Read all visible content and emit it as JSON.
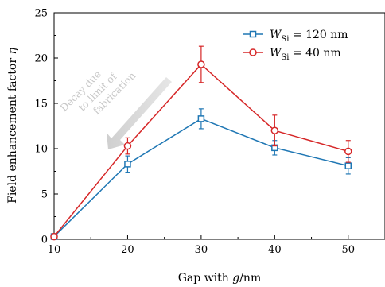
{
  "chart_data": {
    "type": "line",
    "xlabel": "Gap with g/nm",
    "ylabel": "Field enhancement factor η",
    "xlim": [
      10,
      55
    ],
    "ylim": [
      0,
      25
    ],
    "x_ticks": [
      10,
      20,
      30,
      40,
      50
    ],
    "y_ticks": [
      0,
      5,
      10,
      15,
      20,
      25
    ],
    "grid": false,
    "legend_position": "top-right",
    "series": [
      {
        "name": "W_Si = 120 nm",
        "legend_main": "W",
        "legend_sub": "Si",
        "legend_rest": " = 120 nm",
        "color": "#1f77b4",
        "marker": "square",
        "x": [
          10,
          20,
          30,
          40,
          50
        ],
        "y": [
          0.3,
          8.3,
          13.3,
          10.1,
          8.1
        ],
        "yerr": [
          0,
          0.9,
          1.1,
          0.8,
          0.9
        ]
      },
      {
        "name": "W_Si = 40 nm",
        "legend_main": "W",
        "legend_sub": "Si",
        "legend_rest": " = 40 nm",
        "color": "#d62728",
        "marker": "circle",
        "x": [
          10,
          20,
          30,
          40,
          50
        ],
        "y": [
          0.3,
          10.3,
          19.3,
          12.0,
          9.7
        ],
        "yerr": [
          0,
          0.9,
          2.0,
          1.7,
          1.2
        ]
      }
    ],
    "annotation": {
      "lines": [
        "Decay due",
        "to limit of",
        "fabrication"
      ],
      "color": "#d0d0d0"
    }
  }
}
